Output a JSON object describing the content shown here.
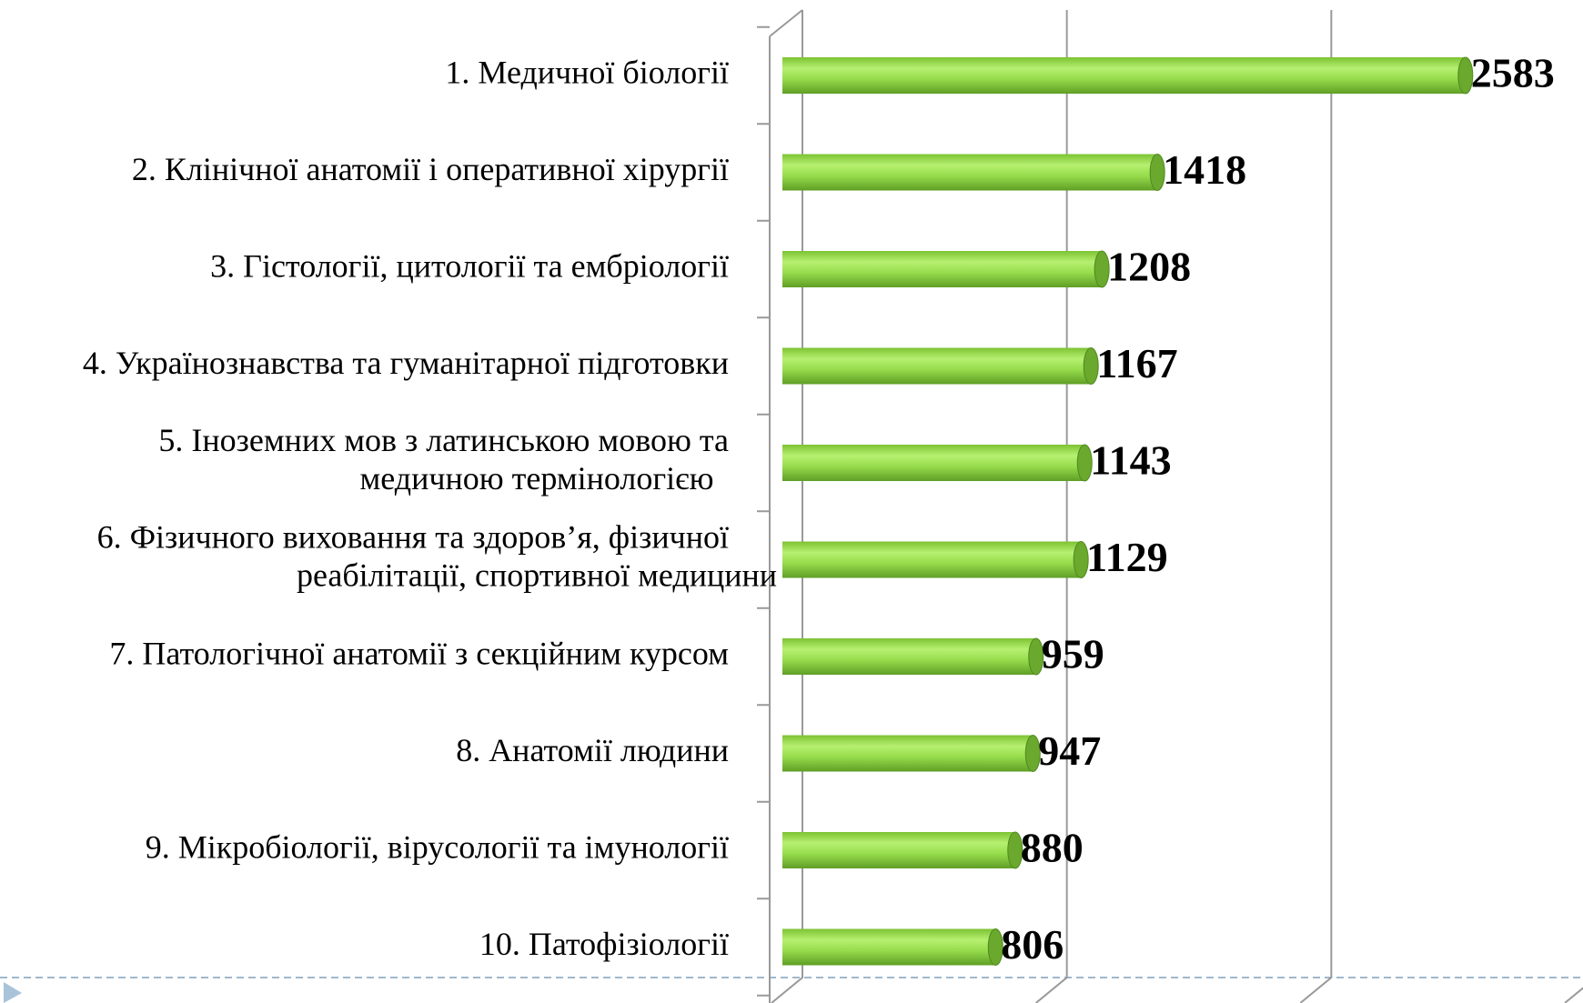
{
  "chart_data": {
    "type": "bar",
    "orientation": "horizontal",
    "categories": [
      "1. Медичної біології",
      "2. Клінічної анатомії і оперативної хірургії",
      "3. Гістології, цитології та ембріології",
      "4. Українознавства та гуманітарної підготовки",
      "5. Іноземних мов з латинською мовою та\nмедичною термінологією",
      "6. Фізичного виховання та здоров’я, фізичної\nреабілітації, спортивної медицини",
      "7. Патологічної анатомії з секційним курсом",
      "8. Анатомії людини",
      "9. Мікробіології, вірусології та імунології",
      "10. Патофізіології"
    ],
    "values": [
      2583,
      1418,
      1208,
      1167,
      1143,
      1129,
      959,
      947,
      880,
      806
    ],
    "color": "#8fd444",
    "xlim": [
      0,
      3000
    ],
    "xticks": [
      0,
      1000,
      2000,
      3000
    ],
    "grid": true
  }
}
